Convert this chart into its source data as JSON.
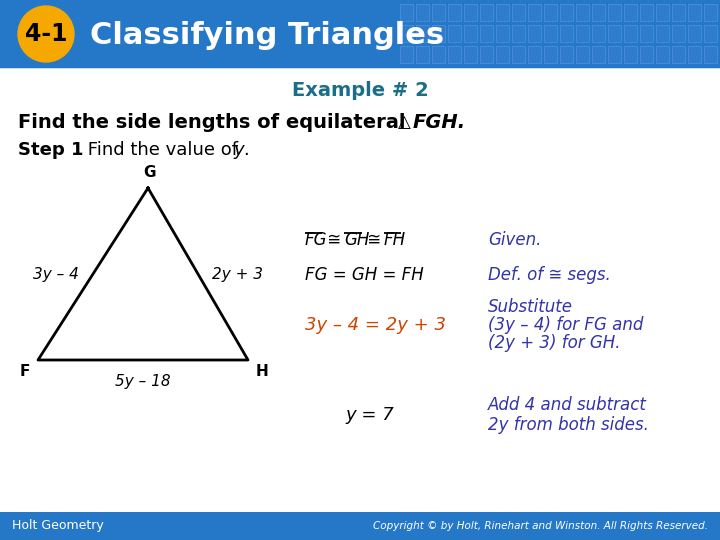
{
  "header_bg_color": "#2577c8",
  "header_text": "Classifying Triangles",
  "header_badge_text": "4-1",
  "header_badge_bg": "#f5a800",
  "header_badge_text_color": "#000000",
  "header_text_color": "#ffffff",
  "example_text": "Example # 2",
  "example_color": "#1a6e8a",
  "bg_color": "#ffffff",
  "title_color": "#000000",
  "step1_color": "#000000",
  "orange": "#cc4400",
  "blue_reason": "#3333aa",
  "footer_bg": "#2577c8",
  "footer_left": "Holt Geometry",
  "footer_right": "Copyright © by Holt, Rinehart and Winston. All Rights Reserved.",
  "footer_text_color": "#ffffff",
  "teal_color": "#1a6e8a"
}
